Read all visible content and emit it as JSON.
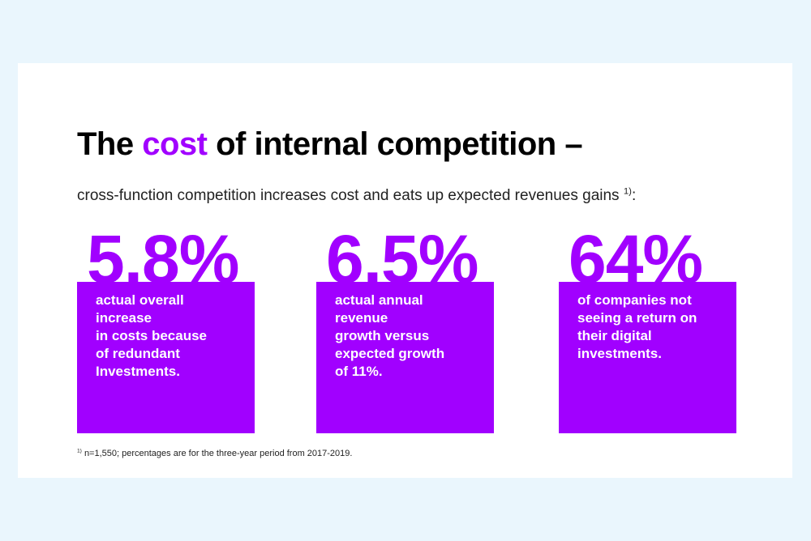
{
  "title": {
    "before": "The",
    "highlight": "cost",
    "after": "of internal competition –"
  },
  "subtitle": {
    "text": "cross-function competition increases cost and eats up expected revenues gains",
    "footnote_mark": "1)",
    "end": ":"
  },
  "stats": [
    {
      "figure": "5.8%",
      "lines": [
        "actual overall",
        "increase",
        "in costs because",
        "of redundant",
        "Investments."
      ]
    },
    {
      "figure": "6.5%",
      "lines": [
        "actual annual",
        "revenue",
        "growth versus",
        "expected growth",
        "of 11%."
      ]
    },
    {
      "figure": "64%",
      "lines": [
        "of companies not",
        "seeing a return on",
        "their digital",
        "investments."
      ]
    }
  ],
  "footnote": {
    "mark": "1)",
    "text": "n=1,550; percentages are for the three-year period from 2017-2019."
  }
}
